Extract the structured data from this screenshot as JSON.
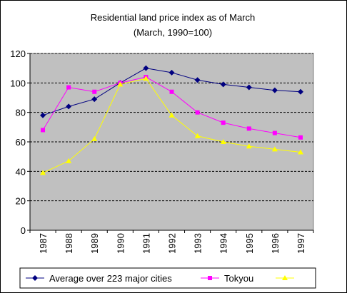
{
  "chart_data": {
    "type": "line",
    "title": "Residential land price index as of March",
    "subtitle": "(March, 1990=100)",
    "x": [
      "1987",
      "1988",
      "1989",
      "1990",
      "1991",
      "1992",
      "1993",
      "1994",
      "1995",
      "1996",
      "1997"
    ],
    "ylim": [
      0,
      120
    ],
    "yticks": [
      0,
      20,
      40,
      60,
      80,
      100,
      120
    ],
    "grid": true,
    "legend_position": "bottom",
    "plot_background": "#c0c0c0",
    "series": [
      {
        "name": "Average over 223 major cities",
        "color": "#000080",
        "marker": "diamond",
        "values": [
          78,
          84,
          89,
          100,
          110,
          107,
          102,
          99,
          97,
          95,
          94
        ]
      },
      {
        "name": "Tokyou",
        "color": "#ff00ff",
        "marker": "square",
        "values": [
          68,
          97,
          94,
          100,
          104,
          94,
          80,
          73,
          69,
          66,
          63
        ]
      },
      {
        "name": "",
        "color": "#ffff00",
        "marker": "triangle",
        "values": [
          39,
          47,
          62,
          99,
          103,
          78,
          64,
          60,
          57,
          55,
          53
        ]
      }
    ]
  }
}
